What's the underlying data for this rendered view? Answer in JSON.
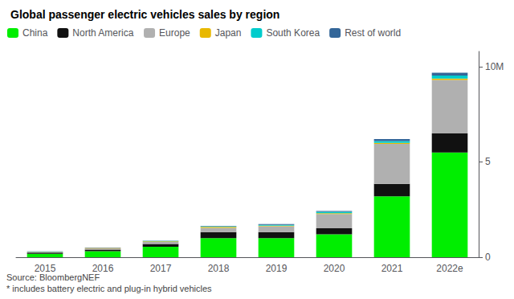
{
  "chart_data": {
    "type": "bar",
    "stacked": true,
    "title": "Global passenger electric vehicles sales by region",
    "annotations": [
      "Source: BloombergNEF\n* includes battery electric and plug-in hybrid vehicles"
    ],
    "categories": [
      "2015",
      "2016",
      "2017",
      "2018",
      "2019",
      "2020",
      "2021",
      "2022e"
    ],
    "series": [
      {
        "name": "China",
        "color": "#00ee00",
        "values": [
          0.18,
          0.32,
          0.55,
          1.0,
          1.0,
          1.2,
          3.2,
          5.5
        ]
      },
      {
        "name": "North America",
        "color": "#111111",
        "values": [
          0.06,
          0.08,
          0.15,
          0.32,
          0.32,
          0.32,
          0.65,
          1.0
        ]
      },
      {
        "name": "Europe",
        "color": "#b0b0b0",
        "values": [
          0.03,
          0.05,
          0.1,
          0.22,
          0.3,
          0.75,
          2.1,
          2.8
        ]
      },
      {
        "name": "Japan",
        "color": "#e8b800",
        "values": [
          0.02,
          0.03,
          0.03,
          0.05,
          0.04,
          0.04,
          0.05,
          0.08
        ]
      },
      {
        "name": "South Korea",
        "color": "#00cccc",
        "values": [
          0.01,
          0.01,
          0.02,
          0.03,
          0.04,
          0.07,
          0.1,
          0.15
        ]
      },
      {
        "name": "Rest of world",
        "color": "#336699",
        "values": [
          0.01,
          0.02,
          0.02,
          0.03,
          0.04,
          0.05,
          0.1,
          0.15
        ]
      }
    ],
    "ylim": [
      0,
      10.8
    ],
    "yticks": [
      0,
      5,
      {
        "value": 10,
        "label": "10M"
      }
    ],
    "grid": false,
    "legend": "upper left"
  }
}
